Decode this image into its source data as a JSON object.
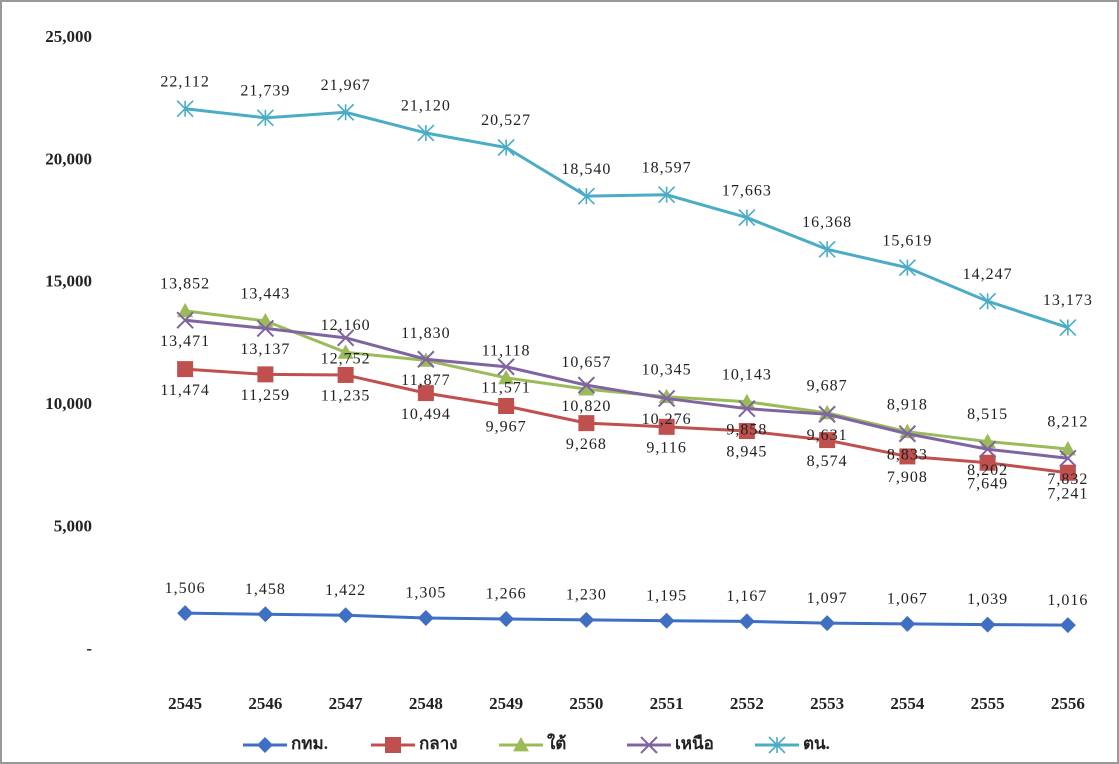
{
  "chart_data": {
    "type": "line",
    "categories": [
      "2545",
      "2546",
      "2547",
      "2548",
      "2549",
      "2550",
      "2551",
      "2552",
      "2553",
      "2554",
      "2555",
      "2556"
    ],
    "ylim": [
      0,
      25000
    ],
    "yticks": [
      {
        "value": 0,
        "label": "-"
      },
      {
        "value": 5000,
        "label": "5,000"
      },
      {
        "value": 10000,
        "label": "10,000"
      },
      {
        "value": 15000,
        "label": "15,000"
      },
      {
        "value": 20000,
        "label": "20,000"
      },
      {
        "value": 25000,
        "label": "25,000"
      }
    ],
    "legend": "bottom",
    "series": [
      {
        "name": "กทม.",
        "color": "#3f6fc2",
        "marker": "diamond",
        "values": [
          1506,
          1458,
          1422,
          1305,
          1266,
          1230,
          1195,
          1167,
          1097,
          1067,
          1039,
          1016
        ],
        "value_labels": [
          "1,506",
          "1,458",
          "1,422",
          "1,305",
          "1,266",
          "1,230",
          "1,195",
          "1,167",
          "1,097",
          "1,067",
          "1,039",
          "1,016"
        ]
      },
      {
        "name": "กลาง",
        "color": "#c0504d",
        "marker": "square",
        "values": [
          11474,
          11259,
          11235,
          10494,
          9967,
          9268,
          9116,
          8945,
          8574,
          7908,
          7649,
          7241
        ],
        "value_labels": [
          "11,474",
          "11,259",
          "11,235",
          "10,494",
          "9,967",
          "9,268",
          "9,116",
          "8,945",
          "8,574",
          "7,908",
          "7,649",
          "7,241"
        ]
      },
      {
        "name": "ใต้",
        "color": "#9bbb59",
        "marker": "triangle",
        "values": [
          13852,
          13443,
          12160,
          11830,
          11118,
          10657,
          10345,
          10143,
          9687,
          8918,
          8515,
          8212
        ],
        "value_labels": [
          "13,852",
          "13,443",
          "12,160",
          "11,830",
          "11,118",
          "10,657",
          "10,345",
          "10,143",
          "9,687",
          "8,918",
          "8,515",
          "8,212"
        ]
      },
      {
        "name": "เหนือ",
        "color": "#8064a2",
        "marker": "x",
        "values": [
          13471,
          13137,
          12752,
          11877,
          11571,
          10820,
          10276,
          9858,
          9631,
          8833,
          8202,
          7832
        ],
        "value_labels": [
          "13,471",
          "13,137",
          "12,752",
          "11,877",
          "11,571",
          "10,820",
          "10,276",
          "9,858",
          "9,631",
          "8,833",
          "8,202",
          "7,832"
        ]
      },
      {
        "name": "ตน.",
        "color": "#4bacc6",
        "marker": "star",
        "values": [
          22112,
          21739,
          21967,
          21120,
          20527,
          18540,
          18597,
          17663,
          16368,
          15619,
          14247,
          13173
        ],
        "value_labels": [
          "22,112",
          "21,739",
          "21,967",
          "21,120",
          "20,527",
          "18,540",
          "18,597",
          "17,663",
          "16,368",
          "15,619",
          "14,247",
          "13,173"
        ]
      }
    ]
  }
}
